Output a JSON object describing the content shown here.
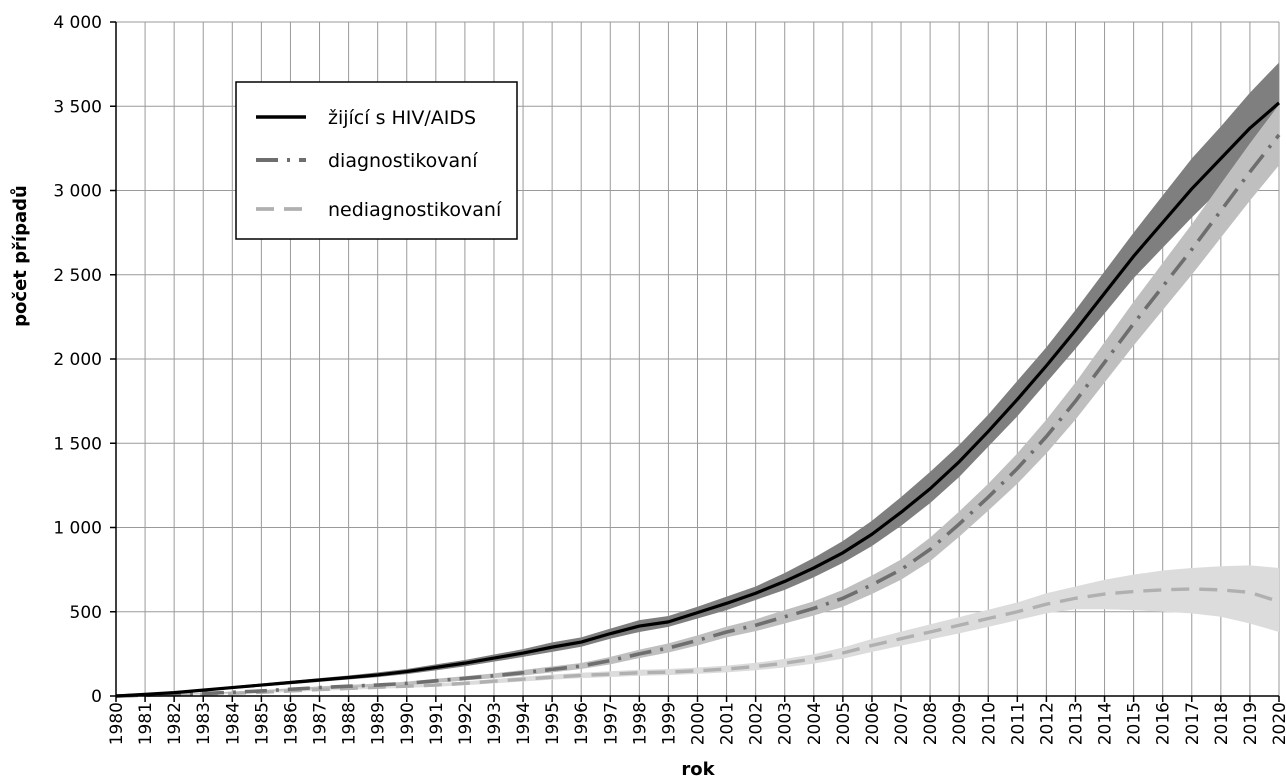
{
  "chart_data": {
    "type": "line",
    "title": "",
    "xlabel": "rok",
    "ylabel": "počet případů",
    "ylim": [
      0,
      4000
    ],
    "yticks": [
      0,
      500,
      1000,
      1500,
      2000,
      2500,
      3000,
      3500,
      4000
    ],
    "ytick_labels": [
      "0",
      "500",
      "1 000",
      "1 500",
      "2 000",
      "2 500",
      "3 000",
      "3 500",
      "4 000"
    ],
    "x": [
      1980,
      1981,
      1982,
      1983,
      1984,
      1985,
      1986,
      1987,
      1988,
      1989,
      1990,
      1991,
      1992,
      1993,
      1994,
      1995,
      1996,
      1997,
      1998,
      1999,
      2000,
      2001,
      2002,
      2003,
      2004,
      2005,
      2006,
      2007,
      2008,
      2009,
      2010,
      2011,
      2012,
      2013,
      2014,
      2015,
      2016,
      2017,
      2018,
      2019,
      2020
    ],
    "grid": true,
    "legend_position": "top-left",
    "series": [
      {
        "name": "žijící s HIV/AIDS",
        "style": "solid",
        "color": "#000000",
        "band_color": "#7f7f7f",
        "values": [
          0,
          10,
          20,
          35,
          50,
          65,
          80,
          95,
          110,
          125,
          145,
          170,
          195,
          225,
          255,
          290,
          320,
          370,
          415,
          440,
          495,
          550,
          610,
          680,
          760,
          850,
          960,
          1090,
          1230,
          1390,
          1570,
          1760,
          1960,
          2170,
          2390,
          2610,
          2810,
          3010,
          3190,
          3370,
          3520
        ],
        "lower": [
          0,
          8,
          16,
          28,
          42,
          56,
          70,
          84,
          98,
          112,
          130,
          152,
          176,
          204,
          232,
          262,
          292,
          340,
          380,
          410,
          460,
          510,
          570,
          630,
          705,
          790,
          890,
          1010,
          1145,
          1300,
          1480,
          1660,
          1860,
          2060,
          2270,
          2480,
          2660,
          2840,
          3010,
          3170,
          3300
        ],
        "upper": [
          0,
          12,
          24,
          42,
          58,
          74,
          90,
          106,
          122,
          140,
          160,
          188,
          214,
          246,
          278,
          318,
          348,
          400,
          450,
          475,
          530,
          590,
          650,
          730,
          820,
          920,
          1040,
          1180,
          1330,
          1490,
          1670,
          1870,
          2070,
          2290,
          2520,
          2750,
          2970,
          3190,
          3380,
          3580,
          3760
        ]
      },
      {
        "name": "diagnostikovaní",
        "style": "dashdot",
        "color": "#6e6e6e",
        "band_color": "#bfbfbf",
        "values": [
          0,
          5,
          10,
          15,
          22,
          30,
          40,
          50,
          58,
          65,
          75,
          90,
          105,
          120,
          138,
          158,
          178,
          210,
          250,
          285,
          330,
          380,
          420,
          470,
          520,
          580,
          660,
          750,
          870,
          1020,
          1180,
          1350,
          1540,
          1750,
          1980,
          2210,
          2430,
          2650,
          2880,
          3110,
          3330
        ],
        "lower": [
          0,
          4,
          8,
          12,
          18,
          25,
          34,
          43,
          50,
          56,
          65,
          78,
          92,
          106,
          122,
          140,
          160,
          188,
          225,
          258,
          300,
          348,
          385,
          430,
          478,
          530,
          605,
          690,
          800,
          945,
          1100,
          1260,
          1440,
          1640,
          1860,
          2080,
          2290,
          2500,
          2720,
          2940,
          3150
        ],
        "upper": [
          0,
          6,
          12,
          18,
          26,
          35,
          46,
          57,
          66,
          74,
          85,
          102,
          118,
          134,
          154,
          176,
          196,
          232,
          275,
          312,
          360,
          412,
          455,
          510,
          562,
          630,
          715,
          810,
          940,
          1095,
          1260,
          1440,
          1640,
          1860,
          2100,
          2340,
          2570,
          2800,
          3040,
          3280,
          3510
        ]
      },
      {
        "name": "nediagnostikovaní",
        "style": "dashed",
        "color": "#b0b0b0",
        "band_color": "#dcdcdc",
        "values": [
          0,
          4,
          8,
          12,
          16,
          22,
          30,
          38,
          45,
          52,
          58,
          65,
          75,
          88,
          100,
          112,
          122,
          130,
          138,
          142,
          150,
          160,
          175,
          195,
          220,
          255,
          300,
          340,
          380,
          420,
          460,
          500,
          545,
          580,
          605,
          620,
          630,
          635,
          630,
          615,
          560
        ],
        "lower": [
          0,
          3,
          6,
          9,
          12,
          17,
          24,
          31,
          37,
          43,
          48,
          55,
          64,
          75,
          86,
          97,
          106,
          113,
          120,
          124,
          131,
          140,
          153,
          170,
          192,
          222,
          262,
          298,
          335,
          372,
          410,
          450,
          490,
          515,
          515,
          510,
          500,
          490,
          470,
          430,
          380
        ],
        "upper": [
          0,
          5,
          10,
          15,
          20,
          27,
          36,
          45,
          53,
          61,
          68,
          75,
          86,
          101,
          114,
          127,
          138,
          147,
          156,
          160,
          169,
          180,
          197,
          220,
          248,
          288,
          338,
          382,
          425,
          468,
          512,
          555,
          610,
          650,
          690,
          720,
          745,
          760,
          770,
          775,
          760
        ]
      }
    ]
  }
}
